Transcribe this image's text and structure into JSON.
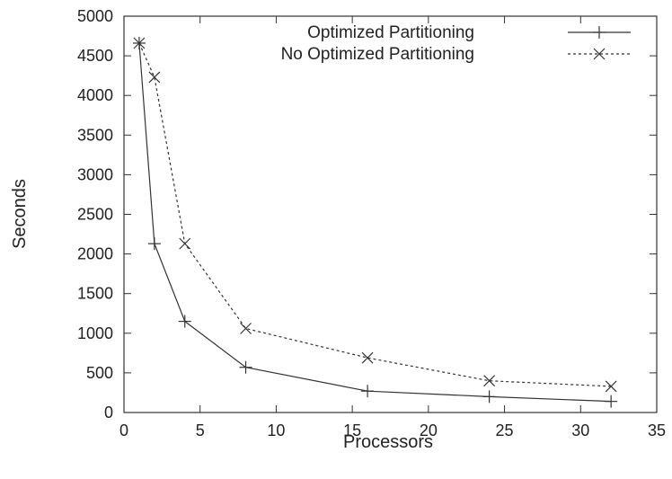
{
  "chart_data": {
    "type": "line",
    "title": "",
    "xlabel": "Processors",
    "ylabel": "Seconds",
    "xlim": [
      0,
      35
    ],
    "ylim": [
      0,
      5000
    ],
    "xticks": [
      0,
      5,
      10,
      15,
      20,
      25,
      30,
      35
    ],
    "yticks": [
      0,
      500,
      1000,
      1500,
      2000,
      2500,
      3000,
      3500,
      4000,
      4500,
      5000
    ],
    "grid": false,
    "legend_position": "top-right",
    "series": [
      {
        "name": "Optimized Partitioning",
        "marker": "plus",
        "line": "solid",
        "x": [
          1,
          2,
          4,
          8,
          16,
          24,
          32
        ],
        "y": [
          4660,
          2130,
          1150,
          570,
          270,
          200,
          140
        ]
      },
      {
        "name": "No Optimized Partitioning",
        "marker": "cross",
        "line": "dashed",
        "x": [
          1,
          2,
          4,
          8,
          16,
          24,
          32
        ],
        "y": [
          4660,
          4230,
          2130,
          1060,
          690,
          400,
          330
        ]
      }
    ]
  },
  "colors": {
    "line": "#333333",
    "text": "#222222",
    "background": "#ffffff"
  }
}
